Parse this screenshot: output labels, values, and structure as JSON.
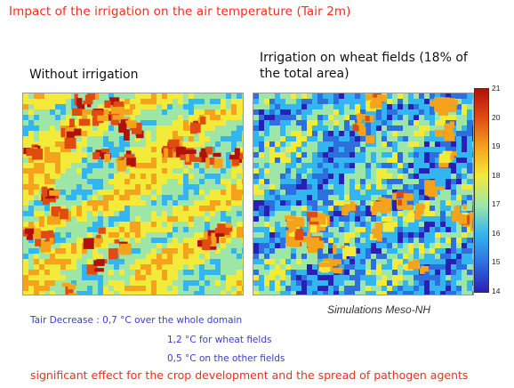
{
  "title": "Impact of the irrigation on the air temperature (Tair 2m)",
  "panels": [
    {
      "label": "Without irrigation"
    },
    {
      "label": "Irrigation on wheat fields (18% of the total area)"
    }
  ],
  "colorbar": {
    "ticks": [
      "21",
      "20",
      "19",
      "18",
      "17",
      "16",
      "15",
      "14"
    ],
    "min": 14,
    "max": 21,
    "colors": [
      "#2a1fb5",
      "#2e6fe0",
      "#33b6f0",
      "#9ee6a8",
      "#f3ea3a",
      "#f5a21c",
      "#e04b12",
      "#b0120a"
    ]
  },
  "credit": "Simulations Meso-NH",
  "stats": {
    "line1_label": "Tair Decrease",
    "line1_value": ": 0,7 °C over the whole domain",
    "line2": "1,2 °C for wheat fields",
    "line3": "0,5 °C on the other fields"
  },
  "conclusion": "significant effect for the crop development and the spread of pathogen agents"
}
